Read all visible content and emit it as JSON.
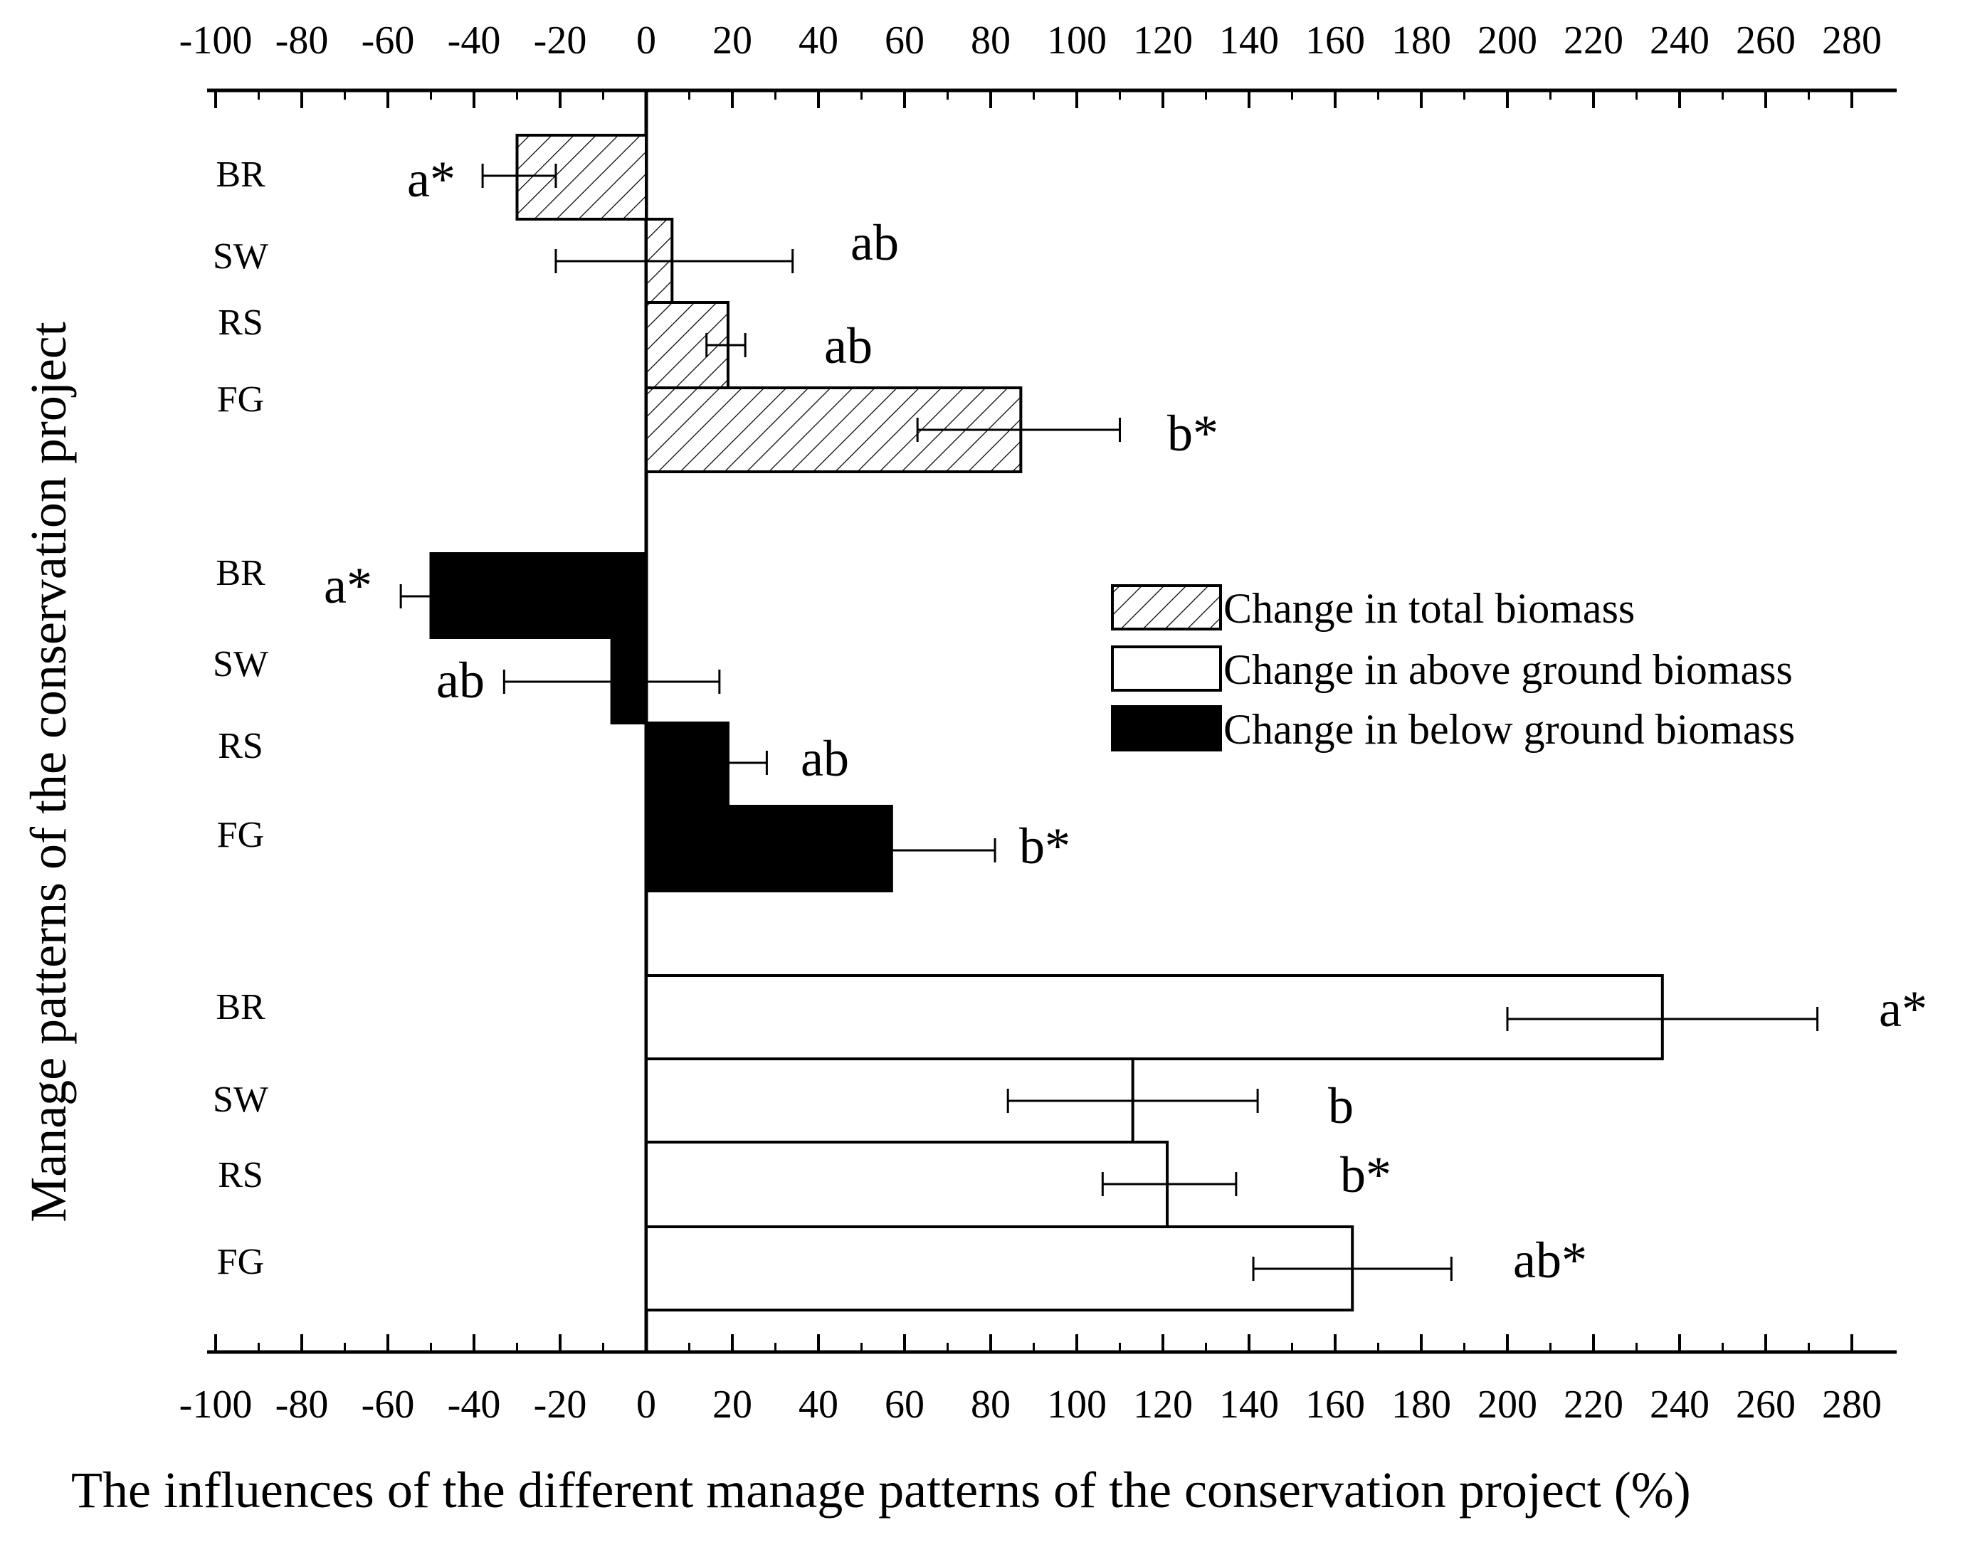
{
  "chart_data": {
    "type": "bar",
    "orientation": "horizontal",
    "xlabel": "The influences of the different manage patterns of the conservation project (%)",
    "ylabel": "Manage patterns of  the conservation project",
    "xlim": [
      -100,
      290
    ],
    "xticks": [
      "-100",
      "-80",
      "-60",
      "-40",
      "-20",
      "0",
      "20",
      "40",
      "60",
      "80",
      "100",
      "120",
      "140",
      "160",
      "180",
      "200",
      "220",
      "240",
      "260",
      "280"
    ],
    "categories": [
      "BR",
      "SW",
      "RS",
      "FG"
    ],
    "legend_position": "center-right",
    "series": [
      {
        "name": "Change in total biomass",
        "fill": "hatched",
        "color": "#ffffff",
        "values": [
          -30,
          6,
          19,
          87
        ],
        "error_low": [
          -38,
          -21,
          14,
          63
        ],
        "error_high": [
          -21,
          34,
          23,
          110
        ],
        "significance": [
          "a*",
          "ab",
          "ab",
          "b*"
        ]
      },
      {
        "name": "Change in above ground biomass",
        "fill": "open",
        "color": "#ffffff",
        "values": [
          236,
          113,
          121,
          164
        ],
        "error_low": [
          200,
          84,
          106,
          141
        ],
        "error_high": [
          272,
          142,
          137,
          187
        ],
        "significance": [
          "a*",
          "b",
          "b*",
          "ab*"
        ]
      },
      {
        "name": "Change in below ground biomass",
        "fill": "solid",
        "color": "#000000",
        "values": [
          -50,
          -8,
          19,
          57
        ],
        "error_low": [
          -57,
          -33,
          19,
          57
        ],
        "error_high": [
          -50,
          17,
          28,
          81
        ],
        "significance": [
          "a*",
          "ab",
          "ab",
          "b*"
        ]
      }
    ],
    "panel_order": [
      "Change in total biomass",
      "Change in below ground biomass",
      "Change in above ground biomass"
    ]
  }
}
